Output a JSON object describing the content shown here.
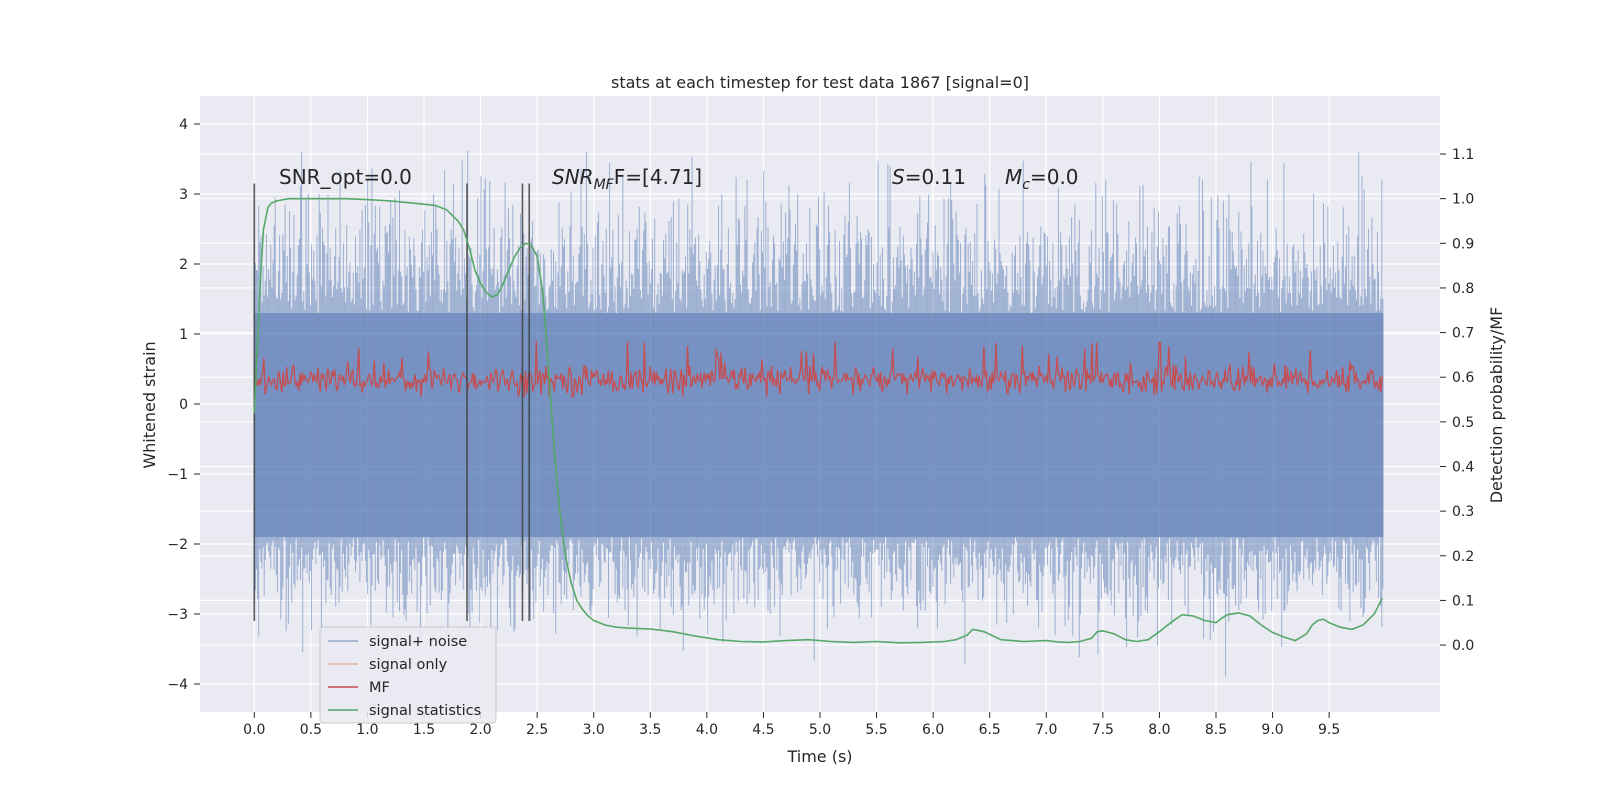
{
  "chart_data": {
    "type": "line",
    "title": "stats at each timestep for test data 1867 [signal=0]",
    "xlabel": "Time (s)",
    "ylabel": "Whitened strain",
    "y2label": "Detection probability/MF",
    "xlim": [
      -0.48,
      10.48
    ],
    "ylim": [
      -4.4,
      4.4
    ],
    "y2lim": [
      -0.15,
      1.23
    ],
    "grid": true,
    "legend_position": "lower-left",
    "x_ticks": [
      "0.0",
      "0.5",
      "1.0",
      "1.5",
      "2.0",
      "2.5",
      "3.0",
      "3.5",
      "4.0",
      "4.5",
      "5.0",
      "5.5",
      "6.0",
      "6.5",
      "7.0",
      "7.5",
      "8.0",
      "8.5",
      "9.0",
      "9.5"
    ],
    "y_ticks": [
      "−4",
      "−3",
      "−2",
      "−1",
      "0",
      "1",
      "2",
      "3",
      "4"
    ],
    "y2_ticks": [
      "0.0",
      "0.1",
      "0.2",
      "0.3",
      "0.4",
      "0.5",
      "0.6",
      "0.7",
      "0.8",
      "0.9",
      "1.0",
      "1.1"
    ],
    "annotations": {
      "snr_opt": "SNR_opt=0.0",
      "snr_mf_base": "SNR",
      "snr_mf_sub": "MF",
      "snr_mf_rest": "F=[4.71]",
      "s_label": "S",
      "s_value": "=0.11",
      "mc_label": "M",
      "mc_sub": "c",
      "mc_value": "=0.0"
    },
    "vlines_x": [
      0.0,
      1.88,
      2.37,
      2.43
    ],
    "vline_ylim": [
      -3.1,
      3.15
    ],
    "series": [
      {
        "name": "signal+ noise",
        "axis": "left",
        "color": "#4c72b0",
        "alpha": 0.5,
        "description_values": {
          "t_start": 0.0,
          "t_end": 9.98,
          "band_low": -1.9,
          "band_high": 1.3,
          "peak_high": 4.0,
          "peak_low": -3.95
        }
      },
      {
        "name": "signal only",
        "axis": "left",
        "color": "#dd8452",
        "values": []
      },
      {
        "name": "MF",
        "axis": "left",
        "color": "#c44e52",
        "description_values": {
          "center": 0.35,
          "band_low": 0.1,
          "band_high": 0.65,
          "peak_high": 0.9
        }
      },
      {
        "name": "signal statistics",
        "axis": "right",
        "color": "#55a868",
        "x": [
          0.0,
          0.05,
          0.08,
          0.12,
          0.15,
          0.2,
          0.3,
          0.5,
          0.8,
          1.0,
          1.2,
          1.4,
          1.6,
          1.7,
          1.8,
          1.85,
          1.9,
          1.95,
          2.0,
          2.05,
          2.1,
          2.15,
          2.2,
          2.25,
          2.3,
          2.35,
          2.4,
          2.45,
          2.5,
          2.55,
          2.6,
          2.65,
          2.7,
          2.75,
          2.8,
          2.85,
          2.9,
          2.95,
          3.0,
          3.05,
          3.1,
          3.2,
          3.3,
          3.5,
          3.7,
          3.9,
          4.1,
          4.3,
          4.5,
          4.7,
          4.9,
          5.1,
          5.3,
          5.5,
          5.7,
          5.9,
          6.1,
          6.2,
          6.3,
          6.35,
          6.45,
          6.6,
          6.8,
          7.0,
          7.1,
          7.2,
          7.3,
          7.4,
          7.45,
          7.5,
          7.6,
          7.7,
          7.8,
          7.9,
          8.0,
          8.1,
          8.2,
          8.3,
          8.4,
          8.5,
          8.55,
          8.6,
          8.7,
          8.8,
          8.9,
          9.0,
          9.1,
          9.2,
          9.3,
          9.35,
          9.4,
          9.45,
          9.5,
          9.6,
          9.7,
          9.8,
          9.9,
          9.97
        ],
        "values": [
          0.52,
          0.8,
          0.93,
          0.98,
          0.99,
          0.995,
          1.0,
          1.0,
          1.0,
          0.998,
          0.995,
          0.99,
          0.985,
          0.975,
          0.95,
          0.93,
          0.89,
          0.84,
          0.81,
          0.79,
          0.78,
          0.785,
          0.81,
          0.84,
          0.87,
          0.89,
          0.9,
          0.895,
          0.87,
          0.79,
          0.62,
          0.44,
          0.3,
          0.2,
          0.14,
          0.1,
          0.08,
          0.065,
          0.055,
          0.05,
          0.045,
          0.04,
          0.038,
          0.036,
          0.03,
          0.02,
          0.012,
          0.008,
          0.007,
          0.01,
          0.012,
          0.008,
          0.006,
          0.008,
          0.005,
          0.006,
          0.008,
          0.012,
          0.022,
          0.035,
          0.03,
          0.012,
          0.008,
          0.01,
          0.007,
          0.006,
          0.008,
          0.015,
          0.03,
          0.032,
          0.025,
          0.012,
          0.008,
          0.012,
          0.03,
          0.05,
          0.068,
          0.065,
          0.055,
          0.05,
          0.06,
          0.068,
          0.072,
          0.065,
          0.045,
          0.028,
          0.018,
          0.01,
          0.025,
          0.045,
          0.055,
          0.058,
          0.05,
          0.04,
          0.035,
          0.045,
          0.07,
          0.105
        ]
      }
    ]
  },
  "legend": {
    "items": [
      {
        "label": "signal+ noise",
        "color": "#4c72b0"
      },
      {
        "label": "signal only",
        "color": "#dd8452"
      },
      {
        "label": "MF",
        "color": "#c44e52"
      },
      {
        "label": "signal statistics",
        "color": "#55a868"
      }
    ]
  }
}
